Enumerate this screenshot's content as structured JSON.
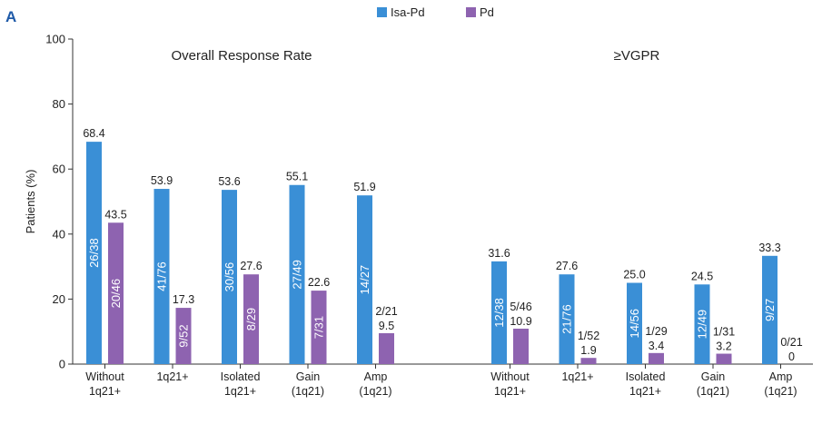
{
  "panel_label": "A",
  "chart_data": {
    "type": "bar",
    "ylabel": "Patients (%)",
    "ylim": [
      0,
      100
    ],
    "yticks": [
      0,
      20,
      40,
      60,
      80,
      100
    ],
    "legend": [
      {
        "name": "Isa-Pd",
        "color": "#3a8fd6"
      },
      {
        "name": "Pd",
        "color": "#8e63b0"
      }
    ],
    "groups": [
      {
        "title": "Overall Response Rate",
        "categories": [
          [
            "Without",
            "1q21+"
          ],
          [
            "1q21+"
          ],
          [
            "Isolated",
            "1q21+"
          ],
          [
            "Gain",
            "(1q21)"
          ],
          [
            "Amp",
            "(1q21)"
          ]
        ],
        "series": [
          {
            "name": "Isa-Pd",
            "values": [
              68.4,
              53.9,
              53.6,
              55.1,
              51.9
            ],
            "labels": [
              "68.4",
              "53.9",
              "53.6",
              "55.1",
              "51.9"
            ],
            "counts": [
              "26/38",
              "41/76",
              "30/56",
              "27/49",
              "14/27"
            ]
          },
          {
            "name": "Pd",
            "values": [
              43.5,
              17.3,
              27.6,
              22.6,
              9.5
            ],
            "labels": [
              "43.5",
              "17.3",
              "27.6",
              "22.6",
              "9.5"
            ],
            "counts": [
              "20/46",
              "9/52",
              "8/29",
              "7/31",
              "2/21"
            ]
          }
        ]
      },
      {
        "title": "≥VGPR",
        "categories": [
          [
            "Without",
            "1q21+"
          ],
          [
            "1q21+"
          ],
          [
            "Isolated",
            "1q21+"
          ],
          [
            "Gain",
            "(1q21)"
          ],
          [
            "Amp",
            "(1q21)"
          ]
        ],
        "series": [
          {
            "name": "Isa-Pd",
            "values": [
              31.6,
              27.6,
              25.0,
              24.5,
              33.3
            ],
            "labels": [
              "31.6",
              "27.6",
              "25.0",
              "24.5",
              "33.3"
            ],
            "counts": [
              "12/38",
              "21/76",
              "14/56",
              "12/49",
              "9/27"
            ]
          },
          {
            "name": "Pd",
            "values": [
              10.9,
              1.9,
              3.4,
              3.2,
              0
            ],
            "labels": [
              "10.9",
              "1.9",
              "3.4",
              "3.2",
              "0"
            ],
            "counts": [
              "5/46",
              "1/52",
              "1/29",
              "1/31",
              "0/21"
            ]
          }
        ]
      }
    ]
  }
}
